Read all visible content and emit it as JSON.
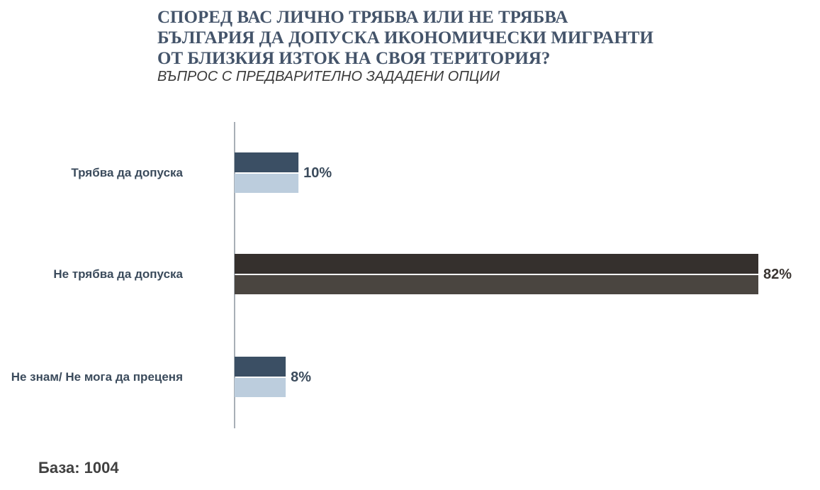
{
  "title": "СПОРЕД ВАС ЛИЧНО ТРЯБВА ИЛИ НЕ ТРЯБВА\nБЪЛГАРИЯ ДА ДОПУСКА ИКОНОМИЧЕСКИ МИГРАНТИ\nОТ БЛИЗКИЯ ИЗТОК НА СВОЯ ТЕРИТОРИЯ?",
  "subtitle": "ВЪПРОС С ПРЕДВАРИТЕЛНО ЗАДАДЕНИ ОПЦИИ",
  "base_note": "База: 1004",
  "colors": {
    "title": "#44546a",
    "bar_dark_top": "#3b4f64",
    "bar_dark_bottom": "#bccddd",
    "bar_highlight_top": "#35302d",
    "bar_highlight_bottom": "#4a4540",
    "category_label": "#3b4b5c",
    "value_label_dark": "#3b4b5c",
    "value_label_highlight": "#3a3532",
    "axis": "#6f7a86"
  },
  "chart_data": {
    "type": "bar",
    "orientation": "horizontal",
    "categories": [
      "Трябва да допуска",
      "Не трябва да допуска",
      "Не знам/ Не мога да преценя"
    ],
    "values": [
      10,
      82,
      8
    ],
    "value_labels": [
      "10%",
      "82%",
      "8%"
    ],
    "highlight_index": 1,
    "xlim": [
      0,
      82
    ],
    "grid": false,
    "legend": "none",
    "title": "СПОРЕД ВАС ЛИЧНО ТРЯБВА ИЛИ НЕ ТРЯБВА БЪЛГАРИЯ ДА ДОПУСКА ИКОНОМИЧЕСКИ МИГРАНТИ ОТ БЛИЗКИЯ ИЗТОК НА СВОЯ ТЕРИТОРИЯ?",
    "xlabel": "",
    "ylabel": ""
  }
}
